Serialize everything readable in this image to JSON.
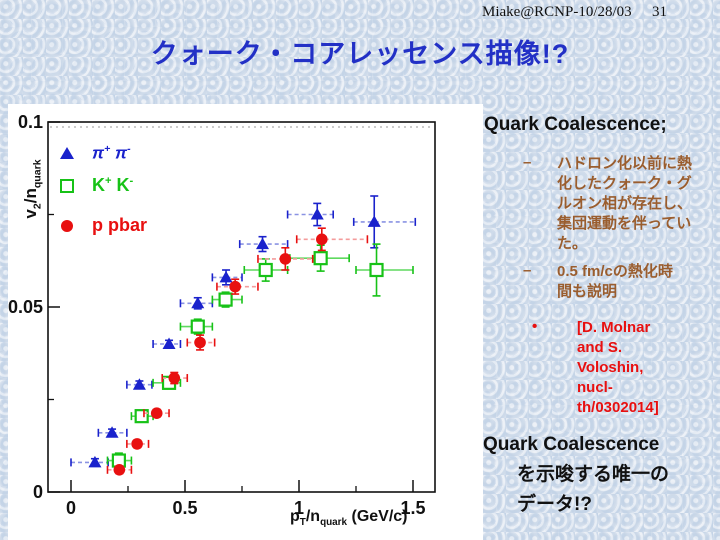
{
  "header": {
    "credit": "Miake@RCNP-10/28/03",
    "page_number": "31"
  },
  "title": "クォーク・コアレッセンス描像!?",
  "right_panel": {
    "heading": "Quark Coalescence;",
    "bullets": [
      {
        "marker": "–",
        "lines": [
          "ハドロン化以前に熱",
          "化したクォーク・グ",
          "ルオン相が存在し、",
          "集団運動を伴ってい",
          "た。"
        ]
      },
      {
        "marker": "–",
        "lines": [
          "0.5 fm/cの熱化時",
          "間も説明"
        ]
      }
    ],
    "citation": {
      "marker": "•",
      "lines": [
        "[D. Molnar",
        "and S.",
        "Voloshin,",
        "nucl-",
        "th/0302014]"
      ]
    },
    "conclusion": {
      "line1": "Quark Coalescence",
      "line2": "を示唆する唯一の",
      "line3": "データ!?"
    }
  },
  "colors": {
    "title_blue": "#2230c6",
    "bullet_brown": "#9a5d2e",
    "citation_red": "#e81010",
    "text_black": "#111111",
    "pion_blue": "#1a22cc",
    "kaon_green": "#17c217",
    "proton_red": "#e81010"
  },
  "chart_data": {
    "type": "scatter",
    "title": "",
    "xlabel": "pT/nquark (GeV/c)",
    "ylabel": "v2/nquark",
    "xlabel_rich": "p_T_/n_quark_ (GeV/c)",
    "ylabel_rich": "v_2_/n_quark_",
    "xlim": [
      -0.1,
      1.6
    ],
    "ylim": [
      0,
      0.1
    ],
    "grid": false,
    "legend_position": "top-left",
    "x_tick_labels": [
      {
        "v": 0,
        "t": "0"
      },
      {
        "v": 0.5,
        "t": "0.5"
      },
      {
        "v": 1,
        "t": "1"
      },
      {
        "v": 1.5,
        "t": "1.5"
      }
    ],
    "x_minor_ticks": [
      0.25,
      0.75,
      1.25
    ],
    "y_tick_labels": [
      {
        "v": 0,
        "t": "0"
      },
      {
        "v": 0.05,
        "t": "0.05"
      },
      {
        "v": 0.1,
        "t": "0.1"
      }
    ],
    "y_minor_ticks": [
      0.025,
      0.075
    ],
    "point_format": [
      "x",
      "v2",
      "x_lo",
      "x_hi",
      "v2_err"
    ],
    "series": [
      {
        "id": "pion",
        "name": "π+ π-",
        "label_rich": "π^+^ π^-^",
        "marker": "triangle",
        "color": "#1a22cc",
        "bar_color": "#8a93e3",
        "bar_dash": "4 3",
        "points": [
          [
            0.105,
            0.008,
            0.0,
            0.163,
            0.001
          ],
          [
            0.18,
            0.016,
            0.12,
            0.245,
            0.001
          ],
          [
            0.3,
            0.029,
            0.245,
            0.355,
            0.001
          ],
          [
            0.43,
            0.04,
            0.36,
            0.48,
            0.001
          ],
          [
            0.556,
            0.051,
            0.48,
            0.62,
            0.0015
          ],
          [
            0.68,
            0.058,
            0.62,
            0.75,
            0.002
          ],
          [
            0.84,
            0.067,
            0.74,
            0.95,
            0.002
          ],
          [
            1.08,
            0.075,
            0.95,
            1.15,
            0.003
          ],
          [
            1.33,
            0.073,
            1.24,
            1.51,
            0.007
          ]
        ]
      },
      {
        "id": "kaon",
        "name": "K+ K-",
        "label_rich": "K^+^ K^-^",
        "marker": "open-square",
        "color": "#17c217",
        "bar_color": "#5fd95f",
        "bar_dash": "",
        "points": [
          [
            0.21,
            0.0085,
            0.16,
            0.265,
            0.002
          ],
          [
            0.31,
            0.0205,
            0.265,
            0.36,
            0.0015
          ],
          [
            0.43,
            0.0295,
            0.36,
            0.48,
            0.0015
          ],
          [
            0.556,
            0.0447,
            0.48,
            0.62,
            0.002
          ],
          [
            0.678,
            0.052,
            0.62,
            0.75,
            0.002
          ],
          [
            0.854,
            0.06,
            0.76,
            0.95,
            0.003
          ],
          [
            1.095,
            0.0632,
            0.96,
            1.22,
            0.0035
          ],
          [
            1.34,
            0.06,
            1.25,
            1.5,
            0.007
          ]
        ]
      },
      {
        "id": "proton",
        "name": "p pbar",
        "label_rich": "p pbar",
        "marker": "circle",
        "color": "#e81010",
        "bar_color": "#f49c9c",
        "bar_dash": "4 3",
        "points": [
          [
            0.212,
            0.006,
            0.16,
            0.265,
            0.001
          ],
          [
            0.29,
            0.013,
            0.245,
            0.34,
            0.001
          ],
          [
            0.376,
            0.0213,
            0.32,
            0.43,
            0.001
          ],
          [
            0.453,
            0.0308,
            0.4,
            0.51,
            0.0015
          ],
          [
            0.566,
            0.0404,
            0.51,
            0.63,
            0.002
          ],
          [
            0.72,
            0.0555,
            0.64,
            0.82,
            0.002
          ],
          [
            0.94,
            0.063,
            0.82,
            1.06,
            0.003
          ],
          [
            1.1,
            0.0683,
            0.99,
            1.3,
            0.003
          ]
        ]
      }
    ]
  }
}
